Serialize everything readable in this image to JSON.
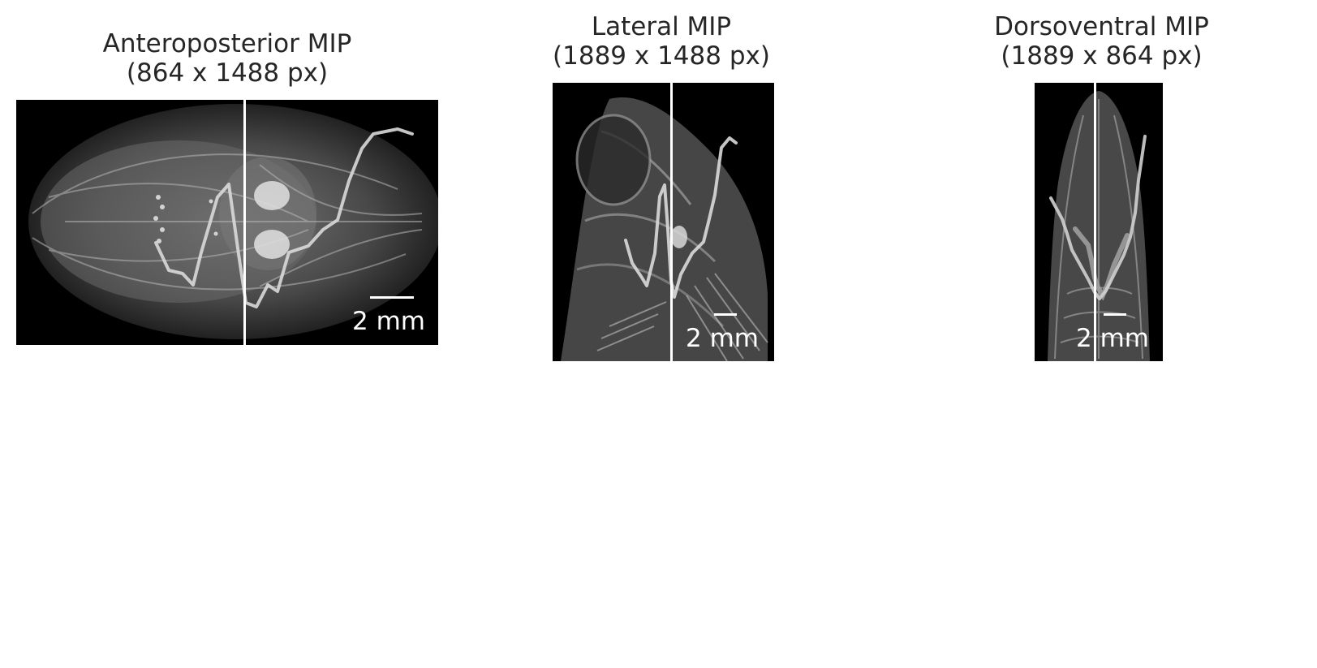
{
  "panels": [
    {
      "title_line1": "Anteroposterior MIP",
      "title_line2": "(864 x 1488 px)",
      "scalebar_label": "2 mm"
    },
    {
      "title_line1": "Lateral MIP",
      "title_line2": "(1889 x 1488 px)",
      "scalebar_label": "2 mm"
    },
    {
      "title_line1": "Dorsoventral MIP",
      "title_line2": "(1889 x 864 px)",
      "scalebar_label": "2 mm"
    }
  ],
  "colors": {
    "title_text": "#262626",
    "image_background": "#000000",
    "overlay": "#ffffff"
  }
}
